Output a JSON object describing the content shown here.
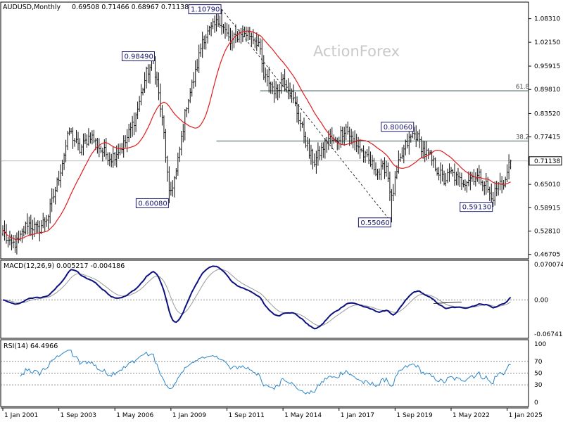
{
  "colors": {
    "price": "#111111",
    "ma": "#e01b1b",
    "macd": "#0d1080",
    "signal": "#9a9a9a",
    "rsi": "#2a86c9",
    "grid": "#666666",
    "label_border": "#1a1a6e"
  },
  "chart_data": [
    {
      "type": "candlestick",
      "symbol": "AUDUSD",
      "title": "AUDUSD,Monthly",
      "ohlc_header": [
        "0.69508",
        "0.71466",
        "0.68967",
        "0.71138"
      ],
      "watermark": "ActionForex",
      "y_ticks": [
        "1.08310",
        "1.02150",
        "0.95915",
        "0.89810",
        "0.83520",
        "0.77415",
        "0.71138",
        "0.65010",
        "0.58915",
        "0.52810",
        "0.46705"
      ],
      "ylim": [
        0.4555,
        1.1265
      ],
      "x_ticks": [
        "1 Jan 2001",
        "1 Sep 2003",
        "1 May 2006",
        "1 Jan 2009",
        "1 Sep 2011",
        "1 May 2014",
        "1 Jan 2017",
        "1 Sep 2019",
        "1 May 2022",
        "1 Jan 2025"
      ],
      "last_price": "0.71138",
      "anchors": [
        [
          0,
          0.53
        ],
        [
          4,
          0.49
        ],
        [
          9,
          0.5
        ],
        [
          14,
          0.55
        ],
        [
          20,
          0.53
        ],
        [
          26,
          0.57
        ],
        [
          32,
          0.67
        ],
        [
          38,
          0.79
        ],
        [
          44,
          0.74
        ],
        [
          50,
          0.78
        ],
        [
          56,
          0.74
        ],
        [
          62,
          0.72
        ],
        [
          70,
          0.76
        ],
        [
          76,
          0.83
        ],
        [
          82,
          0.94
        ],
        [
          86,
          0.97
        ],
        [
          88,
          0.92
        ],
        [
          92,
          0.78
        ],
        [
          95,
          0.62
        ],
        [
          99,
          0.68
        ],
        [
          105,
          0.86
        ],
        [
          110,
          0.94
        ],
        [
          114,
          1.03
        ],
        [
          120,
          1.06
        ],
        [
          124,
          1.08
        ],
        [
          126,
          1.06
        ],
        [
          130,
          1.02
        ],
        [
          136,
          1.05
        ],
        [
          142,
          1.04
        ],
        [
          146,
          1.02
        ],
        [
          149,
          0.93
        ],
        [
          152,
          0.92
        ],
        [
          156,
          0.89
        ],
        [
          160,
          0.93
        ],
        [
          164,
          0.9
        ],
        [
          168,
          0.84
        ],
        [
          172,
          0.78
        ],
        [
          175,
          0.73
        ],
        [
          178,
          0.71
        ],
        [
          182,
          0.74
        ],
        [
          186,
          0.77
        ],
        [
          190,
          0.76
        ],
        [
          194,
          0.79
        ],
        [
          196,
          0.8
        ],
        [
          199,
          0.77
        ],
        [
          203,
          0.75
        ],
        [
          207,
          0.72
        ],
        [
          211,
          0.7
        ],
        [
          215,
          0.68
        ],
        [
          219,
          0.7
        ],
        [
          222,
          0.61
        ],
        [
          226,
          0.7
        ],
        [
          230,
          0.75
        ],
        [
          234,
          0.78
        ],
        [
          236,
          0.78
        ],
        [
          240,
          0.74
        ],
        [
          244,
          0.72
        ],
        [
          248,
          0.69
        ],
        [
          252,
          0.66
        ],
        [
          256,
          0.68
        ],
        [
          260,
          0.66
        ],
        [
          264,
          0.66
        ],
        [
          268,
          0.67
        ],
        [
          272,
          0.67
        ],
        [
          276,
          0.65
        ],
        [
          279,
          0.61
        ],
        [
          282,
          0.64
        ],
        [
          284,
          0.655
        ],
        [
          287,
          0.66
        ],
        [
          289,
          0.7
        ],
        [
          290,
          0.71138
        ]
      ],
      "extremes": [
        {
          "i": 5,
          "low": 0.4775
        },
        {
          "i": 59,
          "low": 0.715
        },
        {
          "i": 87,
          "high": 0.9849
        },
        {
          "i": 95,
          "low": 0.6008
        },
        {
          "i": 125,
          "high": 1.1079
        },
        {
          "i": 198,
          "high": 0.8006
        },
        {
          "i": 222,
          "low": 0.5506
        },
        {
          "i": 235,
          "high": 0.8006
        },
        {
          "i": 280,
          "low": 0.5913
        }
      ],
      "moving_average": {
        "period": 24
      },
      "annotations": [
        {
          "text": "1.10790",
          "i": 125,
          "price": 1.1079,
          "side": "left"
        },
        {
          "text": "0.98490",
          "i": 87,
          "price": 0.9849,
          "side": "left"
        },
        {
          "text": "0.60080",
          "i": 95,
          "price": 0.6008,
          "side": "left"
        },
        {
          "text": "0.80060",
          "i": 235,
          "price": 0.8006,
          "side": "left"
        },
        {
          "text": "0.55060",
          "i": 222,
          "price": 0.5506,
          "side": "left"
        },
        {
          "text": "0.59130",
          "i": 280,
          "price": 0.5913,
          "side": "left"
        }
      ],
      "fib_levels": [
        {
          "label": "61.8",
          "price": 0.8948,
          "from_i": 147
        },
        {
          "label": "38.2",
          "price": 0.7633,
          "from_i": 122
        }
      ],
      "trendline": {
        "from": {
          "i": 125,
          "price": 1.1079
        },
        "to": {
          "i": 222,
          "price": 0.5506
        },
        "style": "dashed"
      }
    },
    {
      "type": "line",
      "indicator": "MACD",
      "title": "MACD(12,26,9) 0.005217 -0.004186",
      "macd_value": 0.005217,
      "signal_value": -0.004186,
      "y_ticks": [
        "0.070074",
        "0.00",
        "-0.067419"
      ],
      "ylim": [
        -0.0755,
        0.0782
      ],
      "series": [
        {
          "name": "MACD"
        },
        {
          "name": "Signal"
        }
      ]
    },
    {
      "type": "line",
      "indicator": "RSI",
      "title": "RSI(14) 64.4966",
      "value": 64.4966,
      "period": 14,
      "y_ticks": [
        "100",
        "70",
        "50",
        "30",
        "0"
      ],
      "ylim": [
        0,
        100
      ],
      "levels": [
        70,
        50,
        30
      ]
    }
  ]
}
